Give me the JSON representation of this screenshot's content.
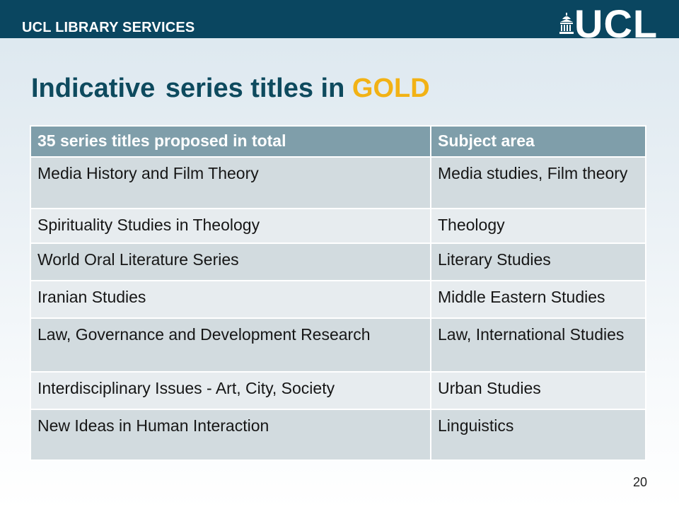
{
  "header": {
    "brand": "UCL LIBRARY SERVICES",
    "logo_text": "UCL",
    "bar_color": "#0a4660"
  },
  "slide": {
    "title_part1": "Indicative",
    "title_part2": "series titles in",
    "title_accent": "GOLD",
    "accent_color": "#f2b215",
    "page_number": "20"
  },
  "table": {
    "headers": [
      "35 series titles proposed in total",
      "Subject area"
    ],
    "rows": [
      [
        "Media History and Film Theory",
        "Media studies, Film theory"
      ],
      [
        "Spirituality Studies in Theology",
        "Theology"
      ],
      [
        "World Oral Literature Series",
        "Literary Studies"
      ],
      [
        "Iranian Studies",
        "Middle Eastern Studies"
      ],
      [
        "Law, Governance and Development Research",
        "Law, International Studies"
      ],
      [
        "Interdisciplinary Issues -  Art, City, Society",
        "Urban Studies"
      ],
      [
        "New Ideas in Human Interaction",
        "Linguistics"
      ]
    ]
  }
}
